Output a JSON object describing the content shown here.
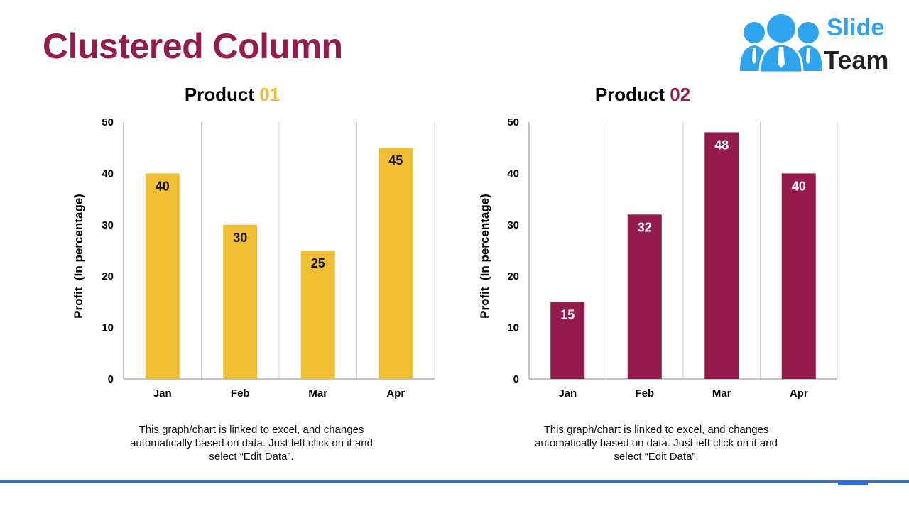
{
  "slide": {
    "title": "Clustered Column",
    "logo": {
      "line1": "Slide",
      "line2": "Team"
    },
    "colors": {
      "title": "#951d4d",
      "accent_blue": "#2a6fdb",
      "logo_blue": "#2ea3ee"
    }
  },
  "chart_data": [
    {
      "type": "bar",
      "title_prefix": "Product ",
      "title_number": "01",
      "title_number_color": "#f0be32",
      "categories": [
        "Jan",
        "Feb",
        "Mar",
        "Apr"
      ],
      "values": [
        40,
        30,
        25,
        45
      ],
      "ylabel": "Profit  (In percentage)",
      "xlabel": "",
      "ylim": [
        0,
        50
      ],
      "yticks": [
        0,
        10,
        20,
        30,
        40,
        50
      ],
      "bar_color": "#f0be32",
      "label_color": "#111111",
      "grid": "vertical category separators",
      "caption": [
        "This graph/chart is linked to excel, and changes",
        "automatically based on data. Just left click on it and",
        "select “Edit Data”."
      ]
    },
    {
      "type": "bar",
      "title_prefix": "Product ",
      "title_number": "02",
      "title_number_color": "#951d4d",
      "categories": [
        "Jan",
        "Feb",
        "Mar",
        "Apr"
      ],
      "values": [
        15,
        32,
        48,
        40
      ],
      "ylabel": "Profit  (In percentage)",
      "xlabel": "",
      "ylim": [
        0,
        50
      ],
      "yticks": [
        0,
        10,
        20,
        30,
        40,
        50
      ],
      "bar_color": "#941b4c",
      "label_color": "#ffffff",
      "grid": "vertical category separators",
      "caption": [
        "This graph/chart is linked to excel, and changes",
        "automatically based on data. Just left click on it and",
        "select “Edit Data”."
      ]
    }
  ]
}
